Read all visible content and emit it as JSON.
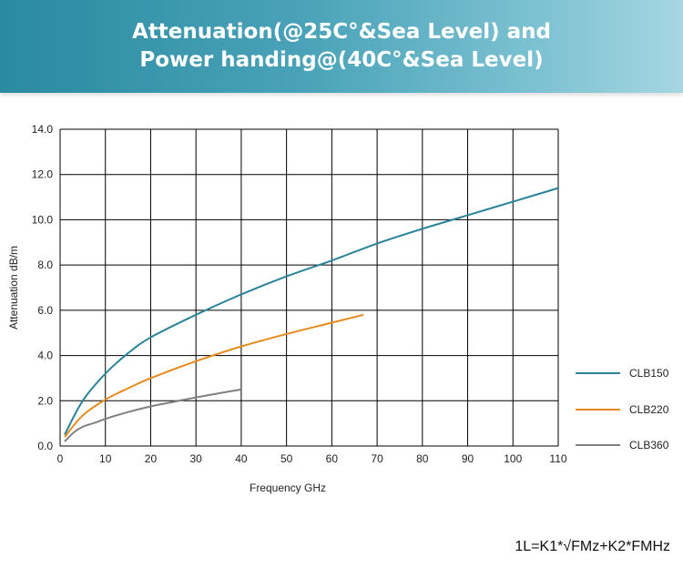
{
  "header": {
    "title_line1": "Attenuation(@25C°&Sea Level) and",
    "title_line2": "Power handing@(40C°&Sea Level)"
  },
  "chart_data": {
    "type": "line",
    "title": "Attenuation(@25C°&Sea Level) and Power handing@(40C°&Sea Level)",
    "xlabel": "Frequency GHz",
    "ylabel": "Attenuation dB/m",
    "xlim": [
      0,
      110
    ],
    "ylim": [
      0,
      14
    ],
    "x_ticks": [
      "0",
      "10",
      "20",
      "30",
      "40",
      "50",
      "60",
      "70",
      "80",
      "90",
      "100",
      "110"
    ],
    "y_ticks": [
      "0.0",
      "2.0",
      "4.0",
      "6.0",
      "8.0",
      "10.0",
      "12.0",
      "14.0"
    ],
    "grid": true,
    "legend_position": "right",
    "series": [
      {
        "name": "CLB150",
        "color": "#2a8499",
        "x": [
          1,
          5,
          10,
          15,
          20,
          30,
          40,
          50,
          60,
          70,
          80,
          90,
          100,
          110
        ],
        "y": [
          0.5,
          2.0,
          3.2,
          4.1,
          4.8,
          5.8,
          6.7,
          7.5,
          8.2,
          8.95,
          9.6,
          10.2,
          10.8,
          11.4
        ]
      },
      {
        "name": "CLB220",
        "color": "#e68a1e",
        "x": [
          1,
          5,
          10,
          15,
          20,
          30,
          40,
          50,
          60,
          67
        ],
        "y": [
          0.4,
          1.35,
          2.05,
          2.55,
          3.0,
          3.75,
          4.4,
          4.95,
          5.45,
          5.8
        ]
      },
      {
        "name": "CLB360",
        "color": "#808080",
        "x": [
          1,
          3,
          5,
          8,
          10,
          15,
          20,
          25,
          30,
          35,
          40
        ],
        "y": [
          0.2,
          0.6,
          0.85,
          1.05,
          1.2,
          1.5,
          1.75,
          1.95,
          2.15,
          2.33,
          2.5
        ]
      }
    ]
  },
  "footer": {
    "formula": "1L=K1*√FMz+K2*FMHz"
  }
}
